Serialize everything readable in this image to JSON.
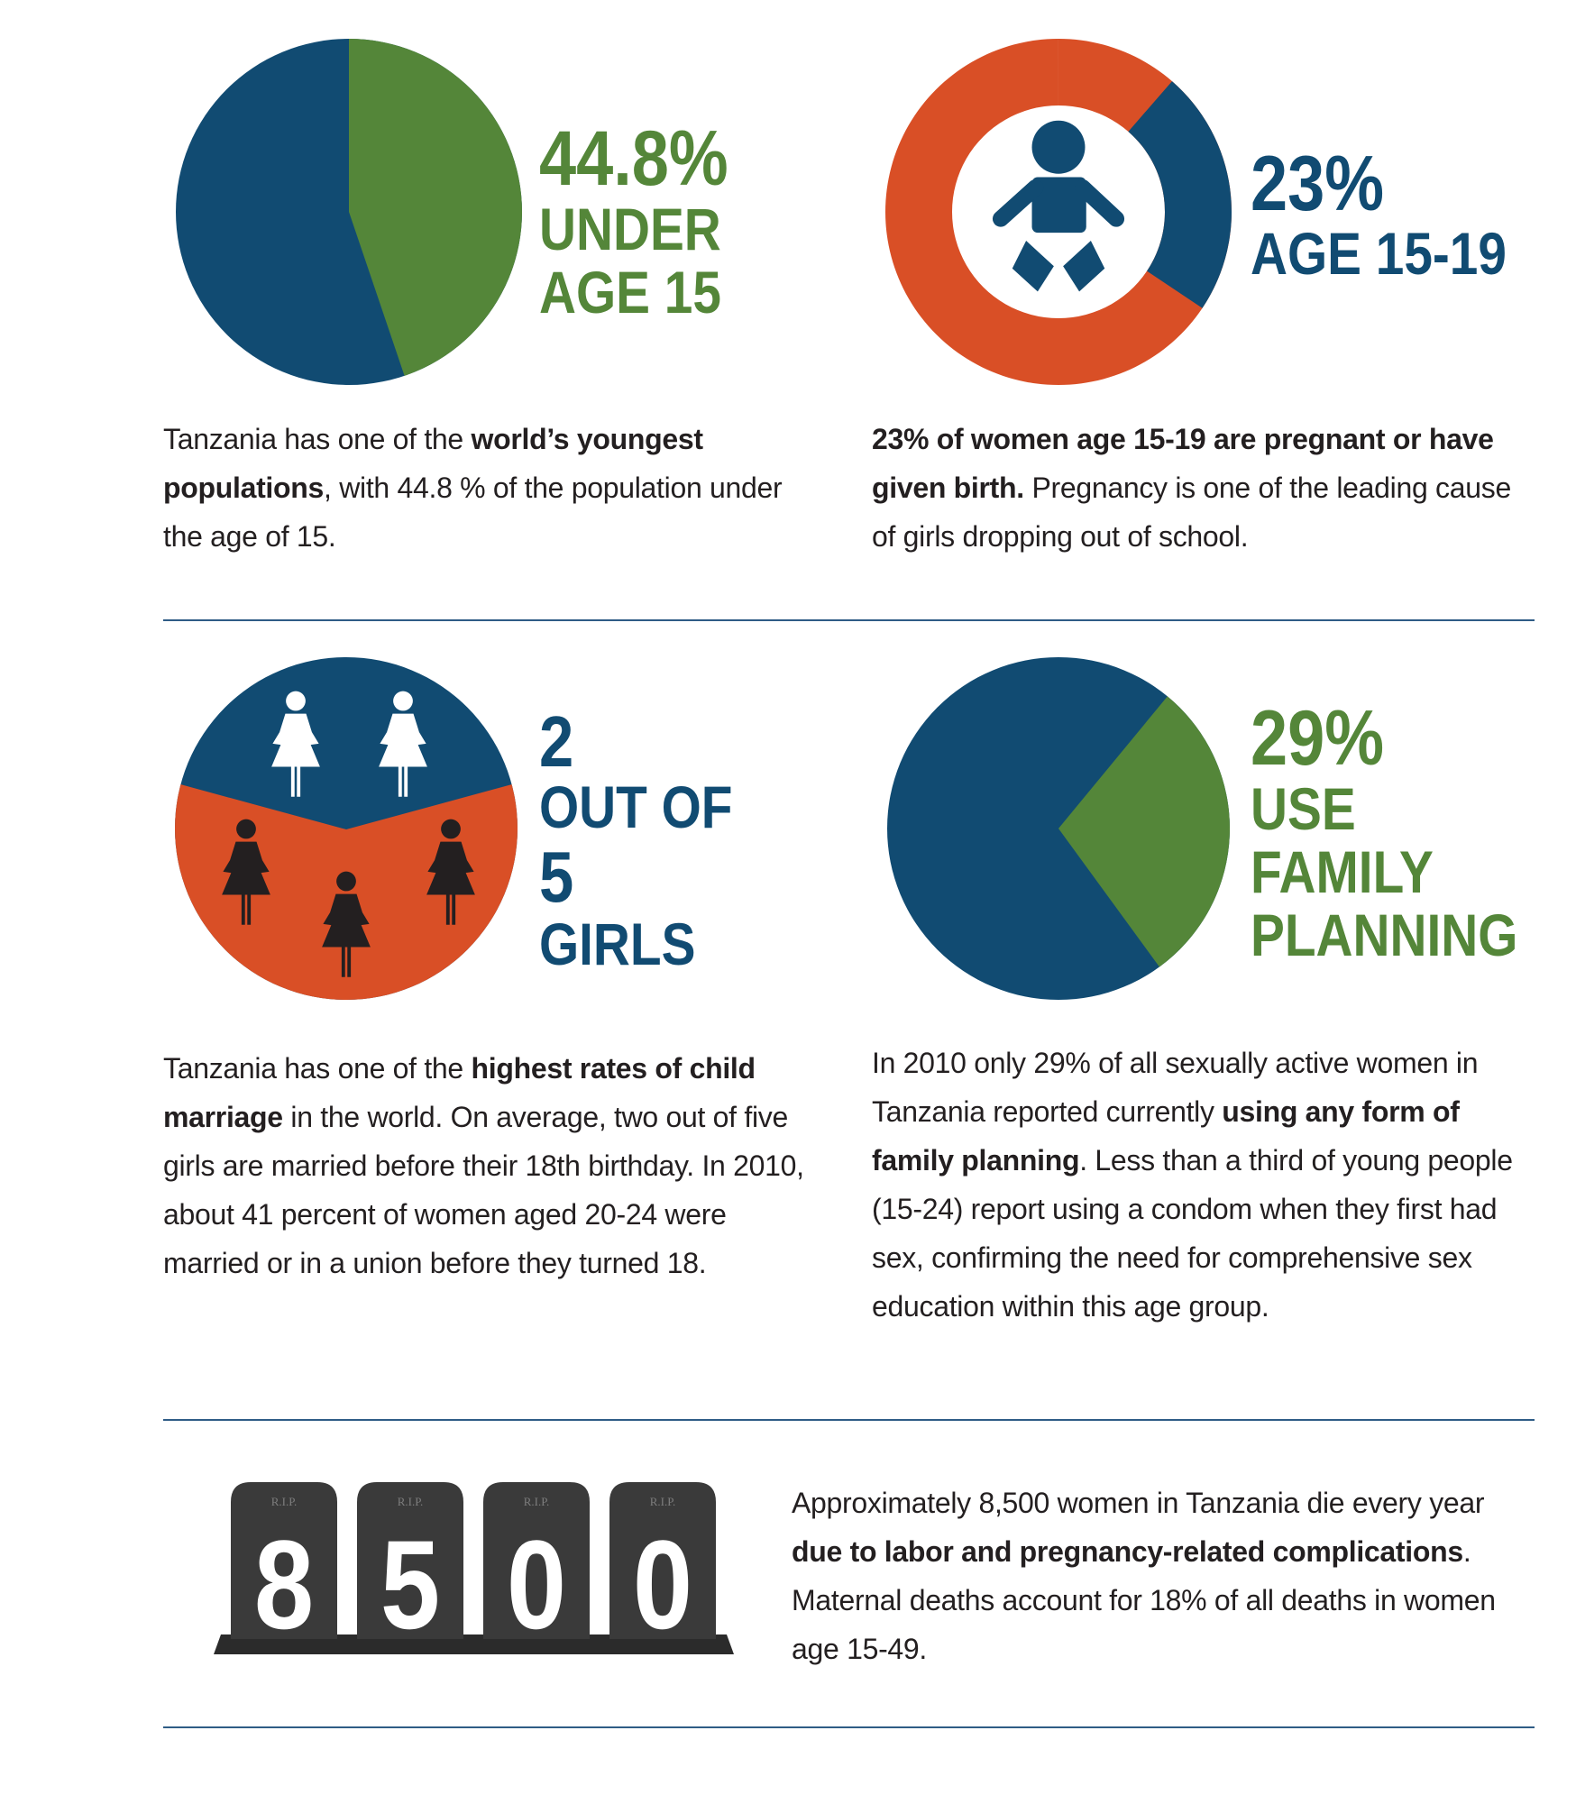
{
  "chart_data": [
    {
      "type": "pie",
      "values": [
        44.8
      ],
      "value_labels": [
        "44.8%"
      ],
      "label_lines": [
        "UNDER",
        "AGE 15"
      ],
      "color": "#548639",
      "rest_color": "#114b72",
      "text_color": "#548639"
    },
    {
      "type": "donut",
      "values": [
        23
      ],
      "value_labels": [
        "23%"
      ],
      "label_lines": [
        "AGE 15-19"
      ],
      "color": "#114b72",
      "rest_color": "#d94f26",
      "text_color": "#114b72"
    },
    {
      "type": "pictogram",
      "value": 2,
      "total": 5,
      "label_lines": [
        "OUT OF",
        "GIRLS"
      ],
      "color": "#ffffff",
      "rest_color": "#231f20",
      "top_color": "#114b72",
      "bottom_color": "#d94f26",
      "text_color": "#114b72"
    },
    {
      "type": "pie",
      "values": [
        29
      ],
      "value_labels": [
        "29%"
      ],
      "label_lines": [
        "USE",
        "FAMILY",
        "PLANNING"
      ],
      "color": "#548639",
      "rest_color": "#114b72",
      "text_color": "#548639"
    }
  ],
  "paragraphs": [
    [
      "Tanzania has one of the ",
      {
        "text": "world’s youngest populations",
        "bold": true
      },
      ", with 44.8 % of the population under the age of 15."
    ],
    [
      {
        "text": "23% of women age 15-19 are pregnant or have given birth.",
        "bold": true
      },
      " Pregnancy is one of the leading cause of girls dropping out of school."
    ],
    [
      "Tanzania has one of the ",
      {
        "text": "highest rates of child marriage",
        "bold": true
      },
      " in the world. On average, two out of five girls are married before their 18th birthday. In 2010, about 41 percent of women aged 20-24 were married or in a union before they turned 18."
    ],
    [
      "In 2010 only 29% of all sexually active women in Tanzania reported currently ",
      {
        "text": "using any form of family planning",
        "bold": true
      },
      ". Less than a third of young people (15-24) report using a condom when they first had sex, confirming the need for comprehensive sex education within this age group."
    ],
    [
      "Approximately 8,500 women in Tanzania die every year ",
      {
        "text": "due to labor and pregnancy-related complications",
        "bold": true
      },
      ". Maternal deaths account for 18% of all deaths in women age 15-49."
    ]
  ],
  "deaths": {
    "stone_label": "R.I.P.",
    "digits": [
      "8",
      "5",
      "0",
      "0"
    ]
  }
}
